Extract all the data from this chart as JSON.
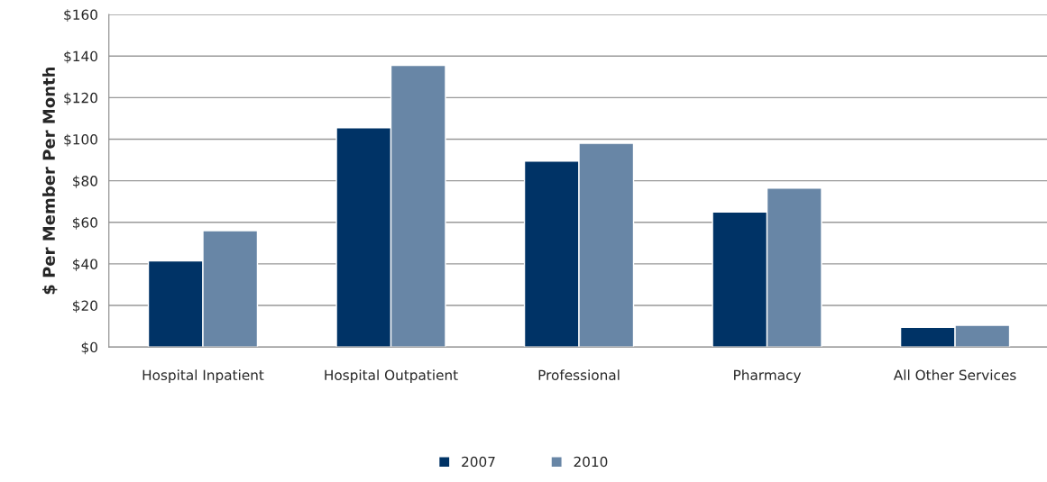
{
  "chart_data": {
    "type": "bar",
    "ylabel": "$ Per Member Per Month",
    "categories": [
      "Hospital Inpatient",
      "Hospital Outpatient",
      "Professional",
      "Pharmacy",
      "All Other Services"
    ],
    "series": [
      {
        "name": "2007",
        "color": "#003366",
        "values": [
          41.5,
          105.5,
          89.5,
          65,
          9.5
        ]
      },
      {
        "name": "2010",
        "color": "#6886a6",
        "values": [
          56,
          135.5,
          98,
          76.5,
          10.5
        ]
      }
    ],
    "ylim": [
      0,
      160
    ],
    "yticks": [
      {
        "value": 0,
        "label": "$0"
      },
      {
        "value": 20,
        "label": "$20"
      },
      {
        "value": 40,
        "label": "$40"
      },
      {
        "value": 60,
        "label": "$60"
      },
      {
        "value": 80,
        "label": "$80"
      },
      {
        "value": 100,
        "label": "$100"
      },
      {
        "value": 120,
        "label": "$120"
      },
      {
        "value": 140,
        "label": "$140"
      },
      {
        "value": 160,
        "label": "$160"
      }
    ],
    "grid": "y",
    "legend": "bottom"
  }
}
